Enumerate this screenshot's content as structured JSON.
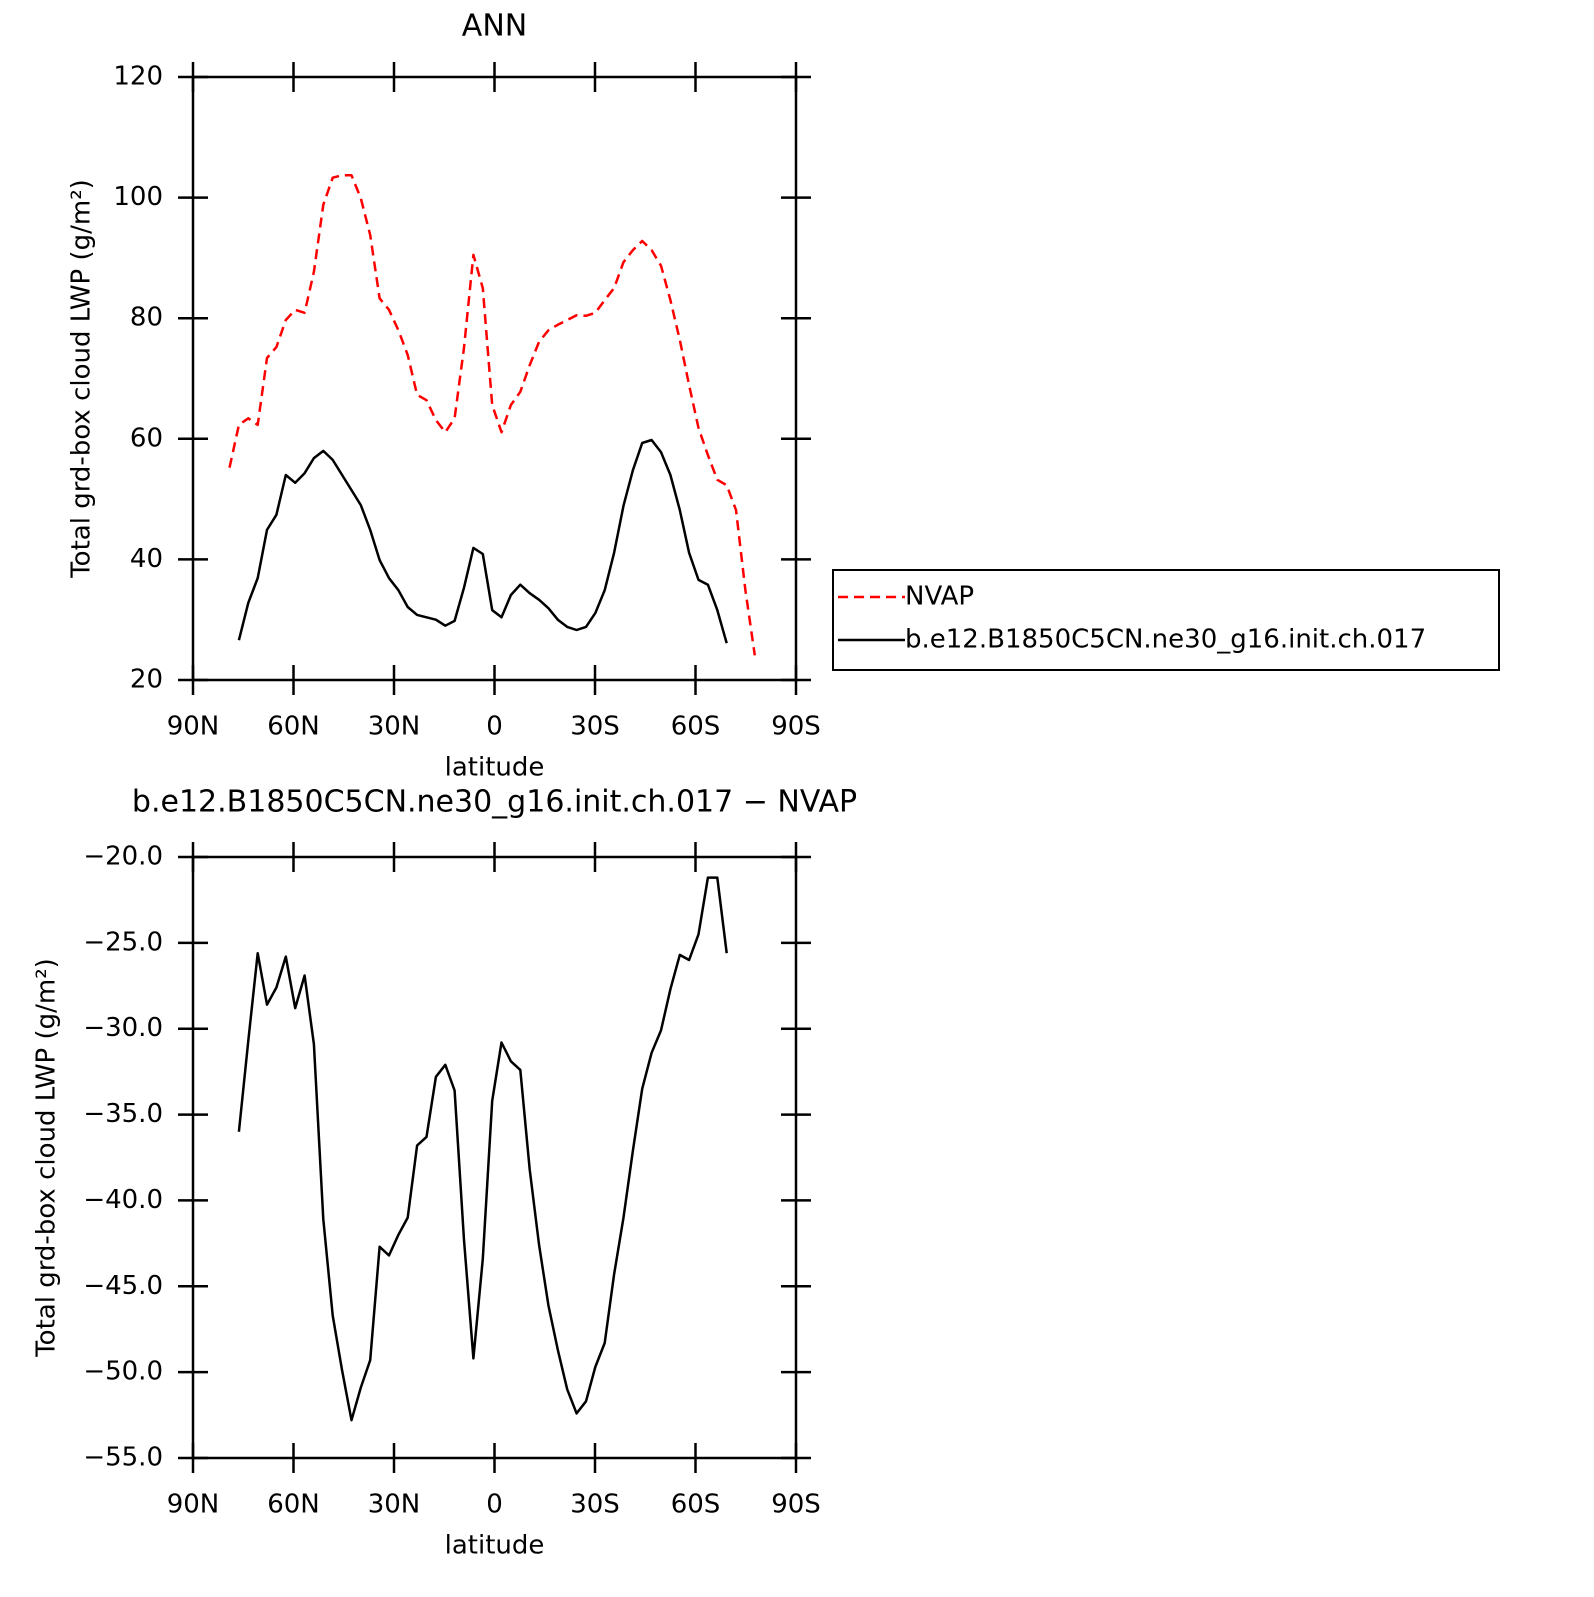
{
  "chart_data": [
    {
      "type": "line",
      "title": "ANN",
      "x_label": "latitude",
      "y_label": "Total grd-box cloud LWP (g/m²)",
      "x": [
        79.1,
        76.3,
        73.5,
        70.7,
        67.9,
        65.1,
        62.3,
        59.5,
        56.7,
        53.9,
        51.1,
        48.3,
        45.5,
        42.7,
        39.9,
        37.1,
        34.3,
        31.5,
        28.7,
        25.9,
        23.1,
        20.3,
        17.5,
        14.7,
        11.9,
        9.1,
        6.3,
        3.5,
        0.7,
        -2.1,
        -4.9,
        -7.7,
        -10.5,
        -13.3,
        -16.1,
        -18.9,
        -21.7,
        -24.5,
        -27.3,
        -30.1,
        -32.9,
        -35.7,
        -38.5,
        -41.3,
        -44.1,
        -46.9,
        -49.7,
        -52.5,
        -55.3,
        -58.1,
        -60.9,
        -63.7,
        -66.5,
        -69.3,
        -72.1,
        -74.9,
        -77.7
      ],
      "series": [
        {
          "name": "NVAP",
          "color": "#ff0000",
          "linestyle": "dashed",
          "values": [
            55.2,
            62.3,
            63.4,
            62.3,
            73.4,
            75.2,
            79.7,
            81.4,
            80.9,
            87.7,
            98.8,
            103.3,
            103.7,
            103.7,
            99.9,
            93.8,
            83.3,
            81.4,
            78.0,
            73.9,
            67.3,
            66.4,
            63.1,
            61.1,
            63.4,
            75.1,
            90.5,
            85.0,
            65.6,
            61.1,
            65.6,
            67.8,
            72.2,
            76.1,
            78.0,
            78.9,
            79.7,
            80.5,
            80.4,
            80.9,
            83.0,
            85.0,
            89.3,
            91.3,
            92.8,
            91.3,
            88.7,
            83.0,
            76.4,
            68.9,
            61.8,
            57.3,
            53.2,
            52.3,
            48.2,
            34.9,
            24.1
          ]
        },
        {
          "name": "b.e12.B1850C5CN.ne30_g16.init.ch.017",
          "color": "#000000",
          "linestyle": "solid",
          "values": [
            null,
            26.6,
            32.8,
            36.9,
            44.9,
            47.4,
            54.0,
            52.7,
            54.3,
            56.8,
            58.0,
            56.5,
            54.0,
            51.5,
            49.0,
            44.9,
            39.9,
            36.9,
            34.9,
            32.1,
            30.8,
            30.4,
            30.0,
            29.0,
            29.8,
            35.3,
            41.9,
            40.9,
            31.6,
            30.4,
            34.1,
            35.8,
            34.4,
            33.3,
            31.9,
            30.0,
            28.8,
            28.3,
            28.8,
            31.1,
            34.9,
            41.1,
            48.9,
            54.8,
            59.3,
            59.8,
            57.8,
            54.0,
            48.2,
            41.1,
            36.6,
            35.8,
            31.6,
            26.1,
            null,
            null,
            null
          ]
        }
      ],
      "xlim": [
        90,
        -90
      ],
      "xticks": [
        {
          "value": 90,
          "label": "90N"
        },
        {
          "value": 60,
          "label": "60N"
        },
        {
          "value": 30,
          "label": "30N"
        },
        0,
        {
          "value": -30,
          "label": "30S"
        },
        {
          "value": -60,
          "label": "60S"
        },
        {
          "value": -90,
          "label": "90S"
        }
      ],
      "ylim": [
        20,
        120
      ],
      "yticks": [
        20,
        40,
        60,
        80,
        100,
        120
      ],
      "legend": "right"
    },
    {
      "type": "line",
      "title": "b.e12.B1850C5CN.ne30_g16.init.ch.017 − NVAP",
      "x_label": "latitude",
      "y_label": "Total grd-box cloud LWP (g/m²)",
      "x": [
        76.3,
        73.5,
        70.7,
        67.9,
        65.1,
        62.3,
        59.5,
        56.7,
        53.9,
        51.1,
        48.3,
        45.5,
        42.7,
        39.9,
        37.1,
        34.3,
        31.5,
        28.7,
        25.9,
        23.1,
        20.3,
        17.5,
        14.7,
        11.9,
        9.1,
        6.3,
        3.5,
        0.7,
        -2.1,
        -4.9,
        -7.7,
        -10.5,
        -13.3,
        -16.1,
        -18.9,
        -21.7,
        -24.5,
        -27.3,
        -30.1,
        -32.9,
        -35.7,
        -38.5,
        -41.3,
        -44.1,
        -46.9,
        -49.7,
        -52.5,
        -55.3,
        -58.1,
        -60.9,
        -63.7,
        -66.5,
        -69.3
      ],
      "series": [
        {
          "color": "#000000",
          "linestyle": "solid",
          "values": [
            -36.0,
            -30.7,
            -25.6,
            -28.6,
            -27.6,
            -25.8,
            -28.8,
            -26.9,
            -30.9,
            -41.1,
            -46.7,
            -49.9,
            -52.8,
            -50.9,
            -49.3,
            -42.7,
            -43.2,
            -42.0,
            -41.0,
            -36.8,
            -36.3,
            -32.8,
            -32.1,
            -33.6,
            -42.3,
            -49.2,
            -43.4,
            -34.2,
            -30.8,
            -31.9,
            -32.4,
            -38.2,
            -42.6,
            -46.1,
            -48.7,
            -51.0,
            -52.4,
            -51.7,
            -49.7,
            -48.3,
            -44.3,
            -41.0,
            -37.1,
            -33.5,
            -31.4,
            -30.1,
            -27.7,
            -25.7,
            -26.0,
            -24.5,
            -21.2,
            -21.2,
            -25.6
          ]
        }
      ],
      "xlim": [
        90,
        -90
      ],
      "xticks": [
        {
          "value": 90,
          "label": "90N"
        },
        {
          "value": 60,
          "label": "60N"
        },
        {
          "value": 30,
          "label": "30N"
        },
        0,
        {
          "value": -30,
          "label": "30S"
        },
        {
          "value": -60,
          "label": "60S"
        },
        {
          "value": -90,
          "label": "90S"
        }
      ],
      "ylim": [
        -55,
        -20
      ],
      "yticks": [
        {
          "value": -55,
          "label": "−55.0"
        },
        {
          "value": -50,
          "label": "−50.0"
        },
        {
          "value": -45,
          "label": "−45.0"
        },
        {
          "value": -40,
          "label": "−40.0"
        },
        {
          "value": -35,
          "label": "−35.0"
        },
        {
          "value": -30,
          "label": "−30.0"
        },
        {
          "value": -25,
          "label": "−25.0"
        },
        {
          "value": -20,
          "label": "−20.0"
        }
      ]
    }
  ]
}
